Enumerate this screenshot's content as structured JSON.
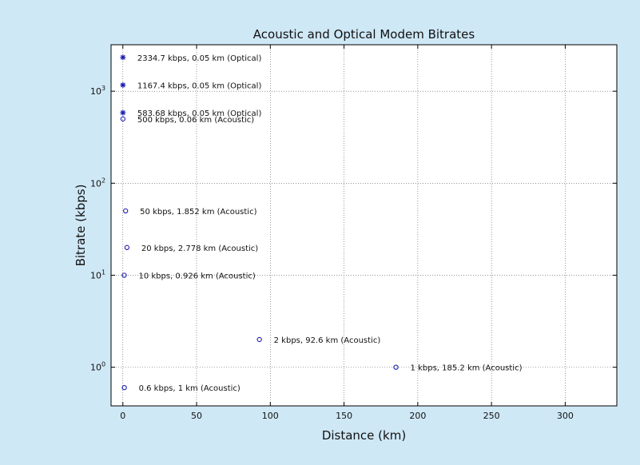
{
  "chart_data": {
    "type": "scatter",
    "title": "Acoustic and Optical Modem Bitrates",
    "xlabel": "Distance (km)",
    "ylabel": "Bitrate (kbps)",
    "xlim": [
      -8,
      335
    ],
    "ylim": [
      0.38,
      3200
    ],
    "yscale": "log",
    "grid": true,
    "x_ticks": [
      0,
      50,
      100,
      150,
      200,
      250,
      300
    ],
    "x_tick_labels": [
      "0",
      "50",
      "100",
      "150",
      "200",
      "250",
      "300"
    ],
    "y_ticks": [
      {
        "value": 1,
        "base": "10",
        "exp": "0"
      },
      {
        "value": 10,
        "base": "10",
        "exp": "1"
      },
      {
        "value": 100,
        "base": "10",
        "exp": "2"
      },
      {
        "value": 1000,
        "base": "10",
        "exp": "3"
      }
    ],
    "series": [
      {
        "marker": "star",
        "color": "#1a1ab4",
        "points": [
          {
            "x": 0.05,
            "y": 2334.7,
            "label": "2334.7 kbps, 0.05 km (Optical)"
          },
          {
            "x": 0.05,
            "y": 1167.4,
            "label": "1167.4 kbps, 0.05 km (Optical)"
          },
          {
            "x": 0.05,
            "y": 583.68,
            "label": "583.68 kbps, 0.05 km (Optical)"
          }
        ]
      },
      {
        "marker": "circle",
        "color": "#1a1ab4",
        "points": [
          {
            "x": 0.06,
            "y": 500,
            "label": "500 kbps, 0.06 km (Acoustic)"
          },
          {
            "x": 1.852,
            "y": 50,
            "label": "50 kbps, 1.852 km (Acoustic)"
          },
          {
            "x": 2.778,
            "y": 20,
            "label": "20 kbps, 2.778 km (Acoustic)"
          },
          {
            "x": 0.926,
            "y": 10,
            "label": "10 kbps, 0.926 km (Acoustic)"
          },
          {
            "x": 92.6,
            "y": 2,
            "label": "2 kbps, 92.6 km (Acoustic)"
          },
          {
            "x": 185.2,
            "y": 1,
            "label": "1 kbps, 185.2 km (Acoustic)"
          },
          {
            "x": 1,
            "y": 0.6,
            "label": "0.6 kbps, 1 km (Acoustic)"
          }
        ]
      }
    ]
  }
}
